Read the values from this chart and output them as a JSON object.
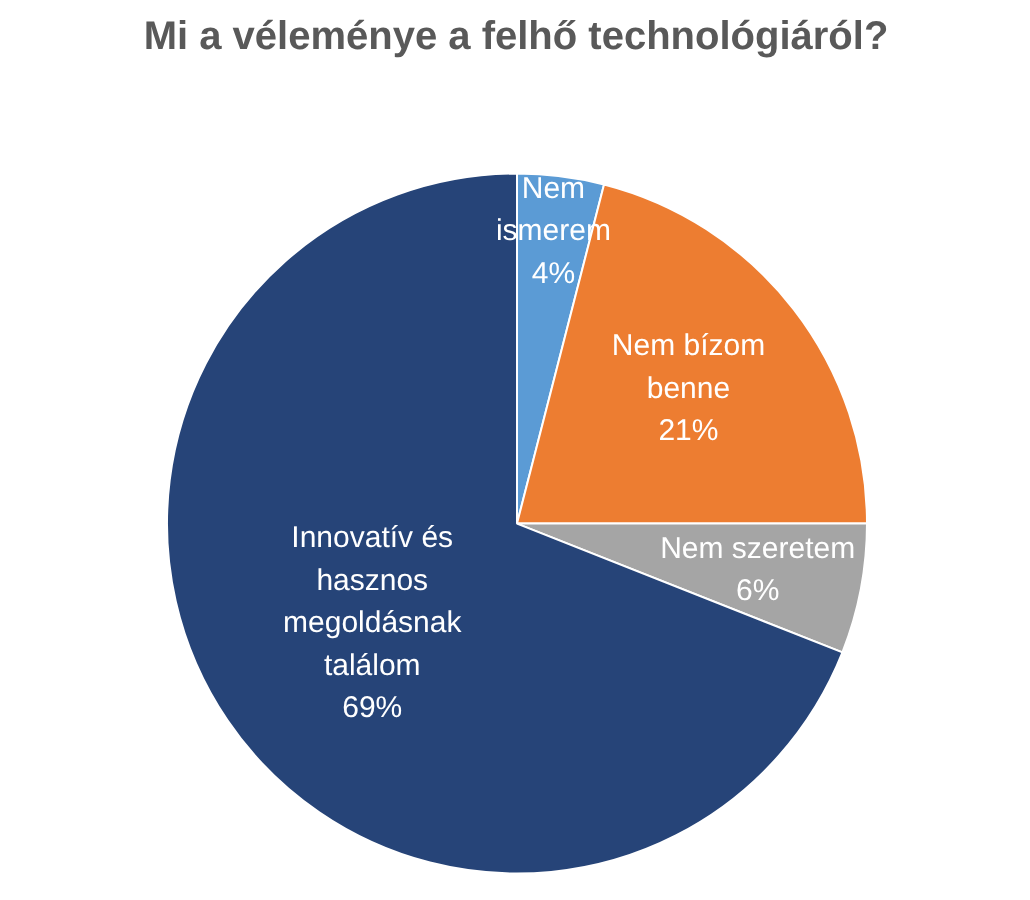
{
  "chart_data": {
    "type": "pie",
    "title": "Mi a véleménye a felhő technológiáról?",
    "categories": [
      "Nem\nismerem",
      "Nem bízom\nbenne",
      "Nem szeretem",
      "Innovatív és\nhasznos\nmegoldásnak\ntalálom"
    ],
    "values": [
      4,
      21,
      6,
      69
    ],
    "colors": [
      "#5b9bd5",
      "#ed7d31",
      "#a5a5a5",
      "#264478"
    ],
    "value_labels": [
      "4%",
      "21%",
      "6%",
      "69%"
    ],
    "legend": false
  }
}
